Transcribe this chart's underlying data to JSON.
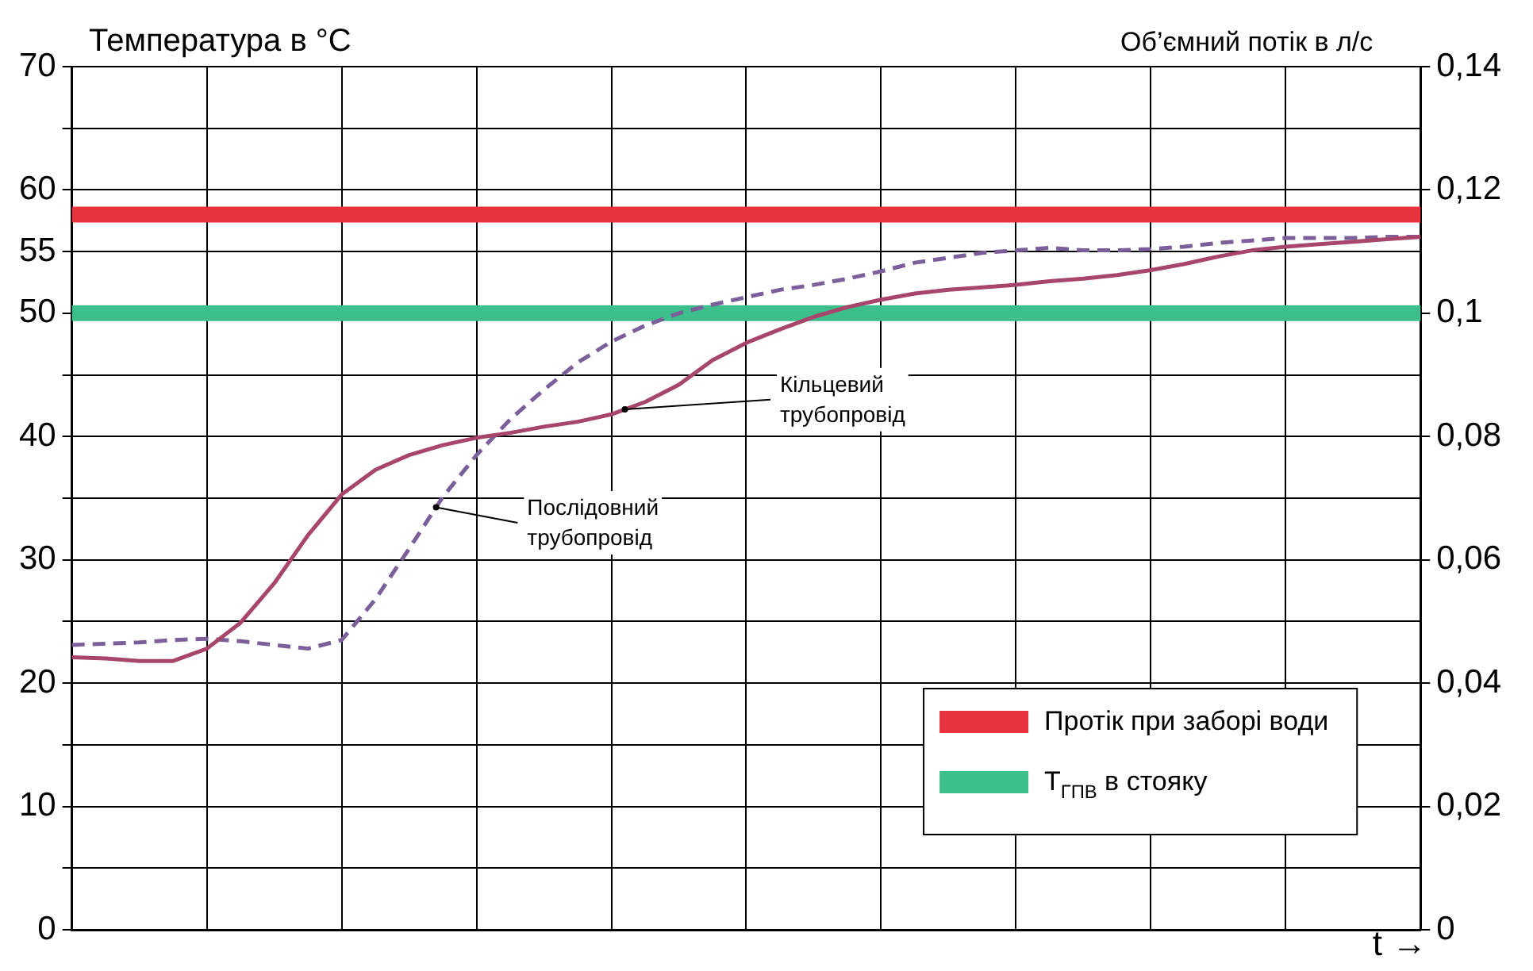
{
  "chart_data": {
    "type": "line",
    "ylabel": "Температура в °C",
    "y2label": "Об’ємний потік в л/с",
    "xlabel": "t →",
    "categories": [
      null,
      null,
      null,
      null,
      null,
      null,
      null,
      null,
      null,
      null,
      null,
      null,
      null,
      null,
      null,
      null,
      null,
      null,
      null,
      null,
      null,
      null,
      null,
      null,
      null,
      null,
      null,
      null,
      null,
      null,
      null,
      null,
      null,
      null,
      null,
      null,
      null,
      null,
      null,
      null,
      null
    ],
    "ylim": [
      0,
      70
    ],
    "yticks": [
      0,
      {
        "value": 5,
        "label": null
      },
      10,
      {
        "value": 15,
        "label": null
      },
      20,
      {
        "value": 25,
        "label": null
      },
      30,
      {
        "value": 35,
        "label": null
      },
      40,
      {
        "value": 45,
        "label": null
      },
      50,
      55,
      60,
      {
        "value": 65,
        "label": null
      },
      70
    ],
    "y2lim": [
      0,
      0.14
    ],
    "y2ticks": [
      0,
      {
        "value": 0.02,
        "label": "0,02"
      },
      {
        "value": 0.04,
        "label": "0,04"
      },
      {
        "value": 0.06,
        "label": "0,06"
      },
      {
        "value": 0.08,
        "label": "0,08"
      },
      {
        "value": 0.1,
        "label": "0,1"
      },
      {
        "value": 0.12,
        "label": "0,12"
      },
      {
        "value": 0.14,
        "label": "0,14"
      }
    ],
    "grid": true,
    "legend": "bottom right",
    "marker": "none",
    "series": [
      {
        "name": "Кільцевий трубопровід",
        "color": "#a8456a",
        "line_style": "solid",
        "values": [
          22.1,
          22.0,
          21.8,
          21.8,
          22.8,
          24.9,
          28.1,
          32.0,
          35.3,
          37.3,
          38.5,
          39.3,
          39.9,
          40.3,
          40.8,
          41.2,
          41.8,
          42.8,
          44.2,
          46.2,
          47.6,
          48.7,
          49.7,
          50.5,
          51.1,
          51.6,
          51.9,
          52.1,
          52.3,
          52.6,
          52.8,
          53.1,
          53.5,
          54.0,
          54.6,
          55.1,
          55.4,
          55.6,
          55.8,
          56.0,
          56.2
        ]
      },
      {
        "name": "Послідовний трубопровід",
        "color": "#7a5f9a",
        "line_style": "dashed",
        "values": [
          23.1,
          23.2,
          23.3,
          23.5,
          23.6,
          23.4,
          23.1,
          22.8,
          23.5,
          26.8,
          30.9,
          35.1,
          38.5,
          41.4,
          43.8,
          46.0,
          47.7,
          49.0,
          50.0,
          50.7,
          51.3,
          51.9,
          52.3,
          52.8,
          53.4,
          54.1,
          54.5,
          54.9,
          55.1,
          55.3,
          55.1,
          55.1,
          55.2,
          55.4,
          55.7,
          55.9,
          56.1,
          56.1,
          56.1,
          56.2,
          56.2
        ]
      }
    ],
    "ref_lines": [
      {
        "axis": "y2",
        "value": 0.116,
        "label": "Протік при заборі води",
        "color": "#e8323c"
      },
      {
        "axis": "y",
        "value": 50,
        "label": "T$_{ГПВ}$ в стояку",
        "color": "#3dbf8c"
      }
    ]
  }
}
